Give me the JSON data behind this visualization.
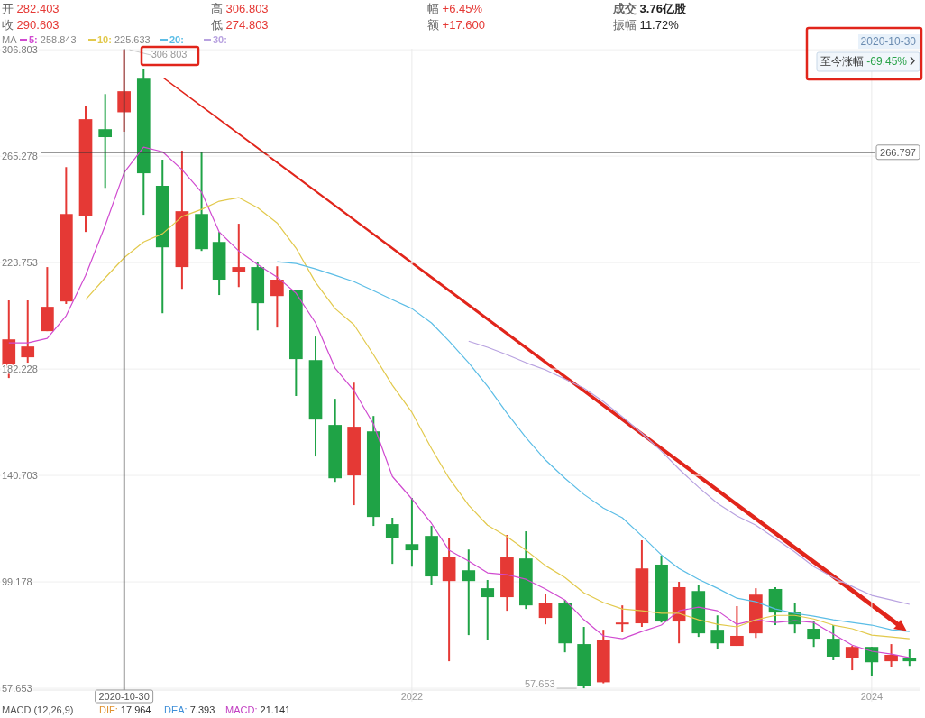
{
  "chart_data": {
    "type": "candlestick",
    "legend_title": "MA",
    "legend": "top left",
    "grid": true,
    "x": [
      "2020-04",
      "2020-05",
      "2020-06",
      "2020-07",
      "2020-08",
      "2020-09",
      "2020-10",
      "2020-11",
      "2020-12",
      "2021-01",
      "2021-02",
      "2021-03",
      "2021-04",
      "2021-05",
      "2021-06",
      "2021-07",
      "2021-08",
      "2021-09",
      "2021-10",
      "2021-11",
      "2021-12",
      "2022-01",
      "2022-02",
      "2022-03",
      "2022-04",
      "2022-05",
      "2022-06",
      "2022-07",
      "2022-08",
      "2022-09",
      "2022-10",
      "2022-11",
      "2022-12",
      "2023-01",
      "2023-02",
      "2023-03",
      "2023-04",
      "2023-05",
      "2023-06",
      "2023-07",
      "2023-08",
      "2023-09",
      "2023-10",
      "2023-11",
      "2023-12",
      "2024-01",
      "2024-02",
      "2024-03"
    ],
    "ohlc": [
      [
        182.6,
        209.0,
        178.7,
        193.8
      ],
      [
        186.8,
        209.0,
        184.7,
        191.0
      ],
      [
        197.0,
        222.0,
        197.0,
        206.5
      ],
      [
        208.6,
        261.0,
        207.6,
        242.7
      ],
      [
        242.0,
        285.0,
        235.7,
        279.7
      ],
      [
        275.8,
        289.5,
        252.9,
        272.7
      ],
      [
        282.403,
        306.803,
        274.803,
        290.603
      ],
      [
        295.5,
        299.1,
        242.4,
        258.6
      ],
      [
        253.7,
        263.9,
        204.0,
        229.7
      ],
      [
        222.0,
        267.4,
        213.5,
        243.8
      ],
      [
        242.7,
        267.0,
        228.3,
        229.0
      ],
      [
        231.8,
        235.7,
        211.1,
        217.1
      ],
      [
        220.2,
        238.9,
        214.2,
        222.0
      ],
      [
        222.0,
        224.1,
        197.3,
        207.9
      ],
      [
        210.7,
        222.3,
        198.4,
        217.1
      ],
      [
        213.2,
        213.2,
        171.7,
        186.1
      ],
      [
        185.7,
        194.9,
        148.1,
        162.5
      ],
      [
        160.4,
        170.6,
        138.2,
        139.6
      ],
      [
        140.7,
        176.9,
        129.1,
        159.7
      ],
      [
        157.9,
        163.9,
        121.0,
        124.5
      ],
      [
        121.7,
        124.2,
        106.2,
        116.1
      ],
      [
        113.9,
        131.9,
        105.1,
        111.5
      ],
      [
        117.1,
        121.0,
        97.8,
        101.3
      ],
      [
        99.5,
        116.4,
        68.2,
        109.0
      ],
      [
        103.7,
        111.8,
        78.4,
        99.5
      ],
      [
        96.7,
        99.9,
        76.6,
        93.2
      ],
      [
        93.2,
        117.5,
        87.9,
        108.7
      ],
      [
        108.3,
        118.9,
        88.6,
        90.0
      ],
      [
        85.1,
        94.6,
        82.6,
        91.1
      ],
      [
        91.1,
        92.1,
        71.7,
        75.2
      ],
      [
        74.9,
        81.6,
        57.653,
        58.4
      ],
      [
        60.0,
        80.5,
        59.6,
        76.6
      ],
      [
        82.6,
        90.0,
        79.5,
        83.3
      ],
      [
        83.0,
        115.4,
        81.6,
        104.4
      ],
      [
        105.9,
        109.4,
        83.3,
        83.7
      ],
      [
        83.7,
        99.2,
        75.2,
        97.1
      ],
      [
        95.6,
        98.1,
        77.7,
        79.1
      ],
      [
        80.5,
        86.1,
        72.8,
        75.2
      ],
      [
        74.2,
        89.7,
        74.2,
        78.1
      ],
      [
        79.1,
        96.7,
        77.3,
        94.2
      ],
      [
        96.4,
        97.1,
        82.3,
        87.2
      ],
      [
        87.2,
        91.1,
        79.1,
        82.6
      ],
      [
        80.9,
        84.0,
        73.8,
        77.0
      ],
      [
        77.0,
        82.3,
        68.6,
        70.0
      ],
      [
        69.6,
        74.2,
        64.7,
        73.8
      ],
      [
        73.8,
        73.8,
        62.6,
        67.8
      ],
      [
        68.2,
        74.9,
        66.1,
        70.7
      ],
      [
        69.6,
        73.1,
        66.4,
        68.2
      ]
    ],
    "colors": [
      "#e53935",
      "#e53935",
      "#e53935",
      "#e53935",
      "#e53935",
      "#1fa346",
      "#e53935",
      "#1fa346",
      "#1fa346",
      "#e53935",
      "#1fa346",
      "#1fa346",
      "#e53935",
      "#1fa346",
      "#e53935",
      "#1fa346",
      "#1fa346",
      "#1fa346",
      "#e53935",
      "#1fa346",
      "#1fa346",
      "#1fa346",
      "#1fa346",
      "#e53935",
      "#1fa346",
      "#1fa346",
      "#e53935",
      "#1fa346",
      "#e53935",
      "#1fa346",
      "#1fa346",
      "#e53935",
      "#e53935",
      "#e53935",
      "#1fa346",
      "#e53935",
      "#1fa346",
      "#1fa346",
      "#e53935",
      "#e53935",
      "#1fa346",
      "#1fa346",
      "#1fa346",
      "#1fa346",
      "#e53935",
      "#1fa346",
      "#e53935",
      "#1fa346"
    ],
    "series": [
      {
        "name": "5: 258.843",
        "type": "line",
        "color": "#d04ad0",
        "values": [
          192.4,
          192.4,
          194.2,
          203.0,
          218.8,
          238.2,
          258.843,
          268.8,
          267.0,
          260.0,
          251.2,
          235.7,
          228.3,
          223.0,
          218.1,
          211.8,
          200.2,
          182.6,
          173.8,
          160.7,
          140.3,
          131.5,
          122.0,
          111.5,
          107.3,
          102.7,
          102.0,
          100.2,
          96.4,
          92.1,
          84.4,
          78.1,
          77.0,
          79.8,
          82.3,
          87.9,
          89.3,
          87.9,
          82.6,
          84.4,
          83.3,
          84.0,
          83.3,
          78.8,
          74.5,
          72.1,
          71.0,
          69.6
        ]
      },
      {
        "name": "10: 225.633",
        "type": "line",
        "color": "#e2c94c",
        "values": [
          null,
          null,
          null,
          null,
          209.3,
          217.8,
          225.633,
          231.8,
          235.0,
          241.7,
          244.5,
          247.7,
          249.1,
          245.2,
          239.2,
          229.4,
          216.0,
          205.8,
          199.5,
          187.8,
          175.9,
          165.3,
          151.2,
          139.6,
          129.1,
          121.3,
          116.8,
          111.5,
          105.5,
          100.9,
          94.9,
          91.1,
          88.6,
          87.9,
          86.9,
          86.9,
          84.4,
          82.6,
          81.6,
          84.4,
          86.1,
          86.1,
          84.7,
          82.3,
          80.9,
          78.4,
          77.7,
          77.0
        ]
      },
      {
        "name": "20: --",
        "type": "line",
        "color": "#5bbde6",
        "values": [
          null,
          null,
          null,
          null,
          null,
          null,
          null,
          null,
          null,
          null,
          null,
          null,
          null,
          null,
          224.1,
          223.4,
          221.3,
          218.8,
          216.3,
          212.8,
          209.3,
          205.8,
          200.2,
          193.1,
          184.7,
          175.5,
          165.0,
          155.5,
          146.7,
          139.6,
          133.3,
          128.0,
          124.2,
          117.1,
          109.7,
          104.4,
          100.2,
          96.7,
          92.8,
          91.4,
          88.6,
          86.9,
          85.8,
          84.4,
          83.3,
          82.3,
          80.5,
          79.8
        ]
      },
      {
        "name": "30: --",
        "type": "line",
        "color": "#b8a2e0",
        "values": [
          null,
          null,
          null,
          null,
          null,
          null,
          null,
          null,
          null,
          null,
          null,
          null,
          null,
          null,
          null,
          null,
          null,
          null,
          null,
          null,
          null,
          null,
          null,
          null,
          193.1,
          190.7,
          187.8,
          184.7,
          181.9,
          178.3,
          174.8,
          169.5,
          163.6,
          157.2,
          150.2,
          143.2,
          136.1,
          129.8,
          124.9,
          121.3,
          116.1,
          110.8,
          105.1,
          100.9,
          97.4,
          93.9,
          92.1,
          90.4
        ]
      }
    ],
    "xlim": [
      "2020-03-18",
      "2024-03-17"
    ],
    "xticks": [
      {
        "value": "2022-01",
        "label": "2022"
      },
      {
        "value": "2024-01",
        "label": "2024"
      }
    ],
    "ylim": [
      52.4,
      326.2
    ],
    "yticks": [
      57.653,
      99.178,
      140.703,
      182.228,
      223.753,
      265.278,
      306.803
    ],
    "ref_lines": [
      {
        "axis": "x",
        "value": "2020-10",
        "label": "2020-10-30",
        "color": "#333333"
      },
      {
        "axis": "y",
        "value": 266.797,
        "label": "266.797",
        "color": "#333333"
      }
    ],
    "annotations": [
      "开 282.403",
      "收 290.603",
      "高 306.803",
      "低 274.803",
      "幅 +6.45%",
      "额 +17.600",
      "成交 3.76亿股",
      "振幅 11.72%",
      "2020-10-30",
      "至今涨幅 -69.45%",
      "MACD (12,26,9)",
      "DIF: 17.964",
      "DEA: 7.393",
      "MACD: 21.141",
      {
        "text": "306.803",
        "x": "2020-10",
        "y": 306.803
      },
      {
        "text": "57.653",
        "x": "2022-10",
        "y": 57.653
      }
    ]
  }
}
